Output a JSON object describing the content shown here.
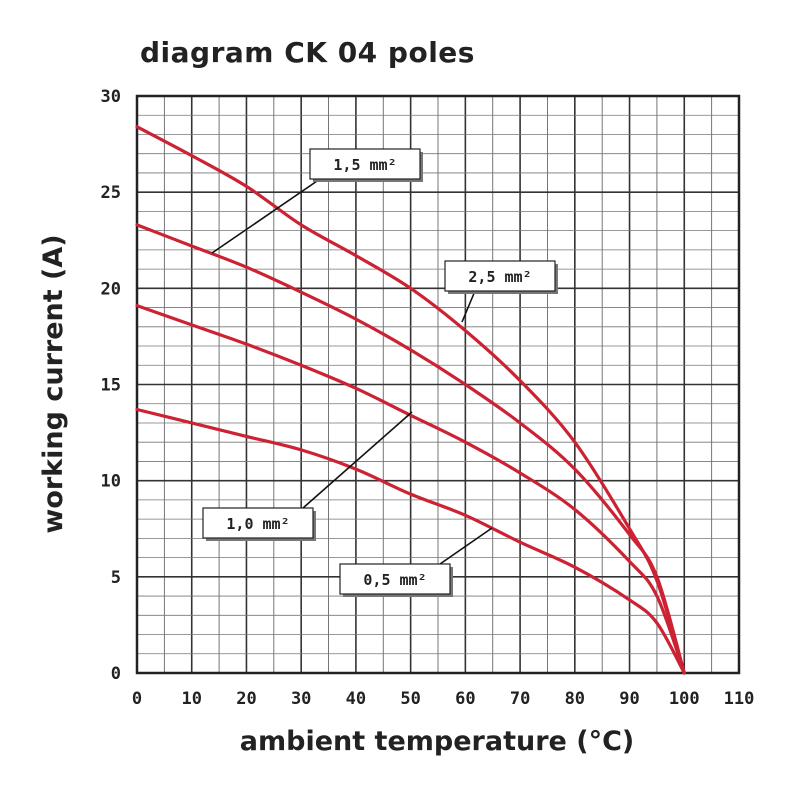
{
  "chart_data": {
    "type": "line",
    "title": "diagram CK 04 poles",
    "xlabel": "ambient temperature (°C)",
    "ylabel": "working current (A)",
    "xlim": [
      0,
      110
    ],
    "ylim": [
      0,
      30
    ],
    "x_ticks": [
      "0",
      "10",
      "20",
      "30",
      "40",
      "50",
      "60",
      "70",
      "80",
      "90",
      "100",
      "110"
    ],
    "y_ticks": [
      "0",
      "5",
      "10",
      "15",
      "20",
      "25",
      "30"
    ],
    "grid": true,
    "line_color": "#cc2233",
    "series": [
      {
        "name": "2,5 mm²",
        "x": [
          0,
          10,
          20,
          30,
          40,
          50,
          60,
          70,
          80,
          90,
          95,
          100
        ],
        "y": [
          28.4,
          26.9,
          25.3,
          23.3,
          21.7,
          20.0,
          17.8,
          15.2,
          12.0,
          7.5,
          4.8,
          0
        ]
      },
      {
        "name": "1,5 mm²",
        "x": [
          0,
          10,
          20,
          30,
          40,
          50,
          60,
          70,
          80,
          90,
          95,
          100
        ],
        "y": [
          23.3,
          22.2,
          21.1,
          19.8,
          18.4,
          16.8,
          15.0,
          13.0,
          10.6,
          7.2,
          5.0,
          0
        ]
      },
      {
        "name": "1,0 mm²",
        "x": [
          0,
          10,
          20,
          30,
          40,
          50,
          60,
          70,
          80,
          90,
          95,
          100
        ],
        "y": [
          19.1,
          18.1,
          17.1,
          16.0,
          14.8,
          13.4,
          12.0,
          10.4,
          8.5,
          5.8,
          4.0,
          0
        ]
      },
      {
        "name": "0,5 mm²",
        "x": [
          0,
          10,
          20,
          30,
          40,
          50,
          60,
          70,
          80,
          90,
          95,
          100
        ],
        "y": [
          13.7,
          13.0,
          12.3,
          11.6,
          10.6,
          9.3,
          8.2,
          6.8,
          5.5,
          3.8,
          2.6,
          0
        ]
      }
    ]
  }
}
